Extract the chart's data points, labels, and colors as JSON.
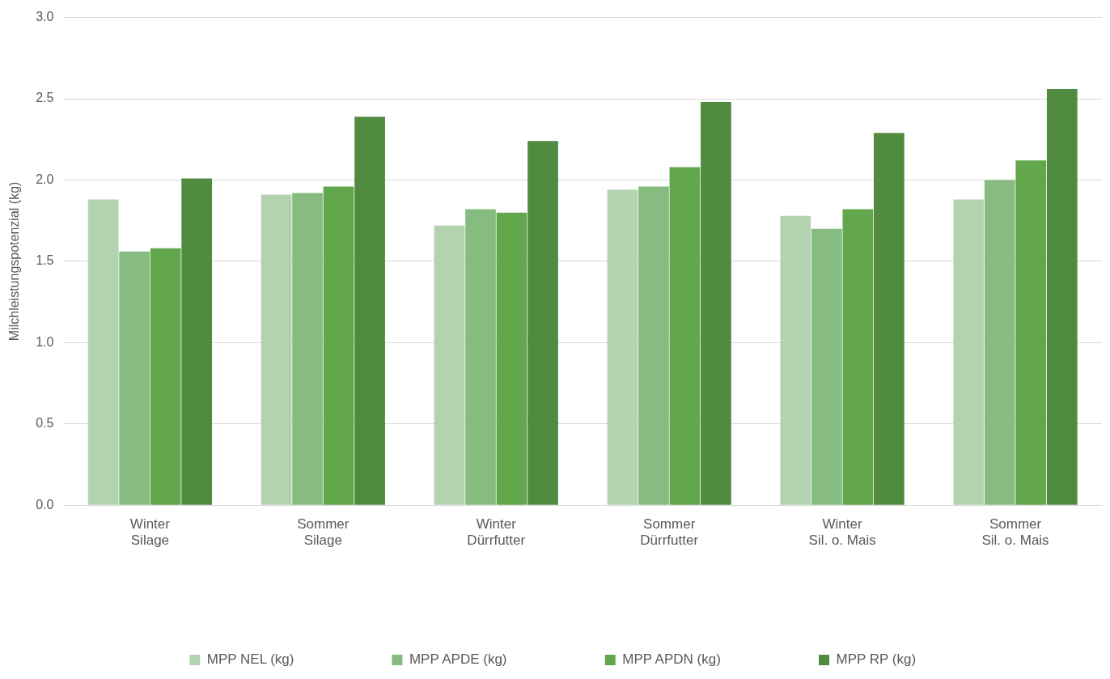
{
  "chart_data": {
    "type": "bar",
    "ylabel": "Milchleistungspotenzial (kg)",
    "categories": [
      "Winter\nSilage",
      "Sommer\nSilage",
      "Winter\nDürrfutter",
      "Sommer\nDürrfutter",
      "Winter\nSil. o. Mais",
      "Sommer\nSil. o. Mais"
    ],
    "series": [
      {
        "name": "MPP NEL (kg)",
        "color": "#b3d3b0",
        "values": [
          1.88,
          1.91,
          1.72,
          1.94,
          1.78,
          1.88
        ]
      },
      {
        "name": "MPP APDE (kg)",
        "color": "#86bc7f",
        "values": [
          1.56,
          1.92,
          1.82,
          1.96,
          1.7,
          2.0
        ]
      },
      {
        "name": "MPP APDN (kg)",
        "color": "#63a74d",
        "values": [
          1.58,
          1.96,
          1.8,
          2.08,
          1.82,
          2.12
        ]
      },
      {
        "name": "MPP RP (kg)",
        "color": "#518b3f",
        "values": [
          2.01,
          2.39,
          2.24,
          2.48,
          2.29,
          2.56
        ]
      }
    ],
    "ylim": [
      0,
      3
    ],
    "yticks": [
      {
        "value": 0,
        "label": "0.0"
      },
      {
        "value": 0.5,
        "label": "0.5"
      },
      {
        "value": 1,
        "label": "1.0"
      },
      {
        "value": 1.5,
        "label": "1.5"
      },
      {
        "value": 2,
        "label": "2.0"
      },
      {
        "value": 2.5,
        "label": "2.5"
      },
      {
        "value": 3,
        "label": "3.0"
      }
    ],
    "grid": "y",
    "legend": "bottom"
  }
}
